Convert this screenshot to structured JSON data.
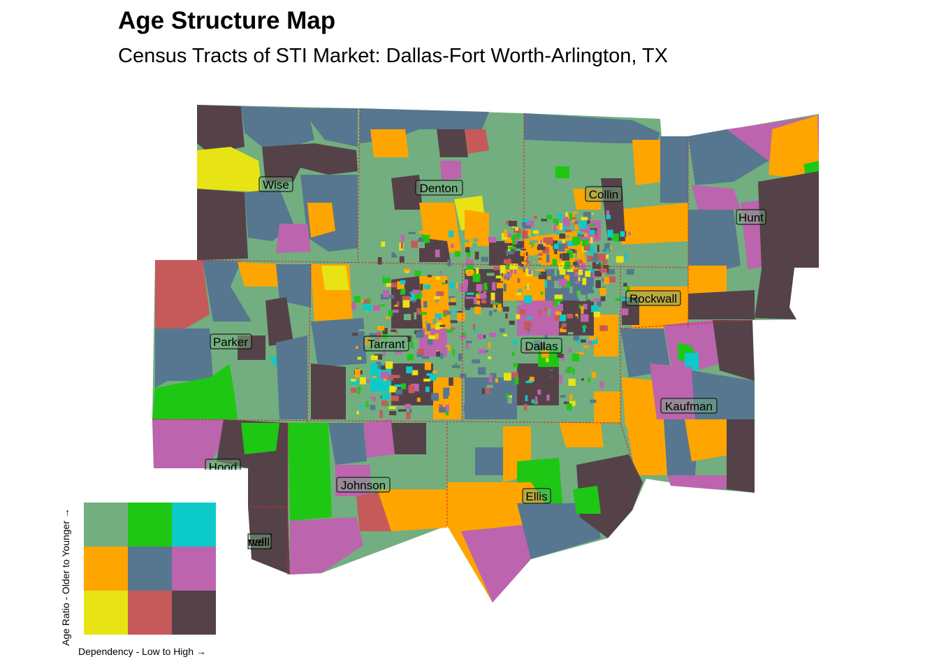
{
  "title": "Age Structure Map",
  "subtitle": "Census Tracts of STI Market: Dallas-Fort Worth-Arlington, TX",
  "colors": {
    "lowdep_young": "#73AE80",
    "middep_young": "#1EC714",
    "highdep_young": "#0DCACA",
    "lowdep_mid": "#FFA500",
    "middep_mid": "#56778F",
    "highdep_mid": "#BC64AE",
    "lowdep_old": "#E8E314",
    "middep_old": "#C65A5A",
    "highdep_old": "#554249",
    "boundary": "#E02020"
  },
  "counties": [
    {
      "name": "Wise"
    },
    {
      "name": "Denton"
    },
    {
      "name": "Collin"
    },
    {
      "name": "Hunt"
    },
    {
      "name": "Parker"
    },
    {
      "name": "Tarrant"
    },
    {
      "name": "Dallas"
    },
    {
      "name": "Rockwall"
    },
    {
      "name": "Kaufman"
    },
    {
      "name": "Hood"
    },
    {
      "name": "Johnson"
    },
    {
      "name": "Ellis"
    },
    {
      "name": "Somervell",
      "visible_text": "rvell"
    }
  ],
  "legend": {
    "x_label": "Dependency - Low to High",
    "y_label": "Age Ratio - Older to Younger",
    "arrow": "→"
  }
}
